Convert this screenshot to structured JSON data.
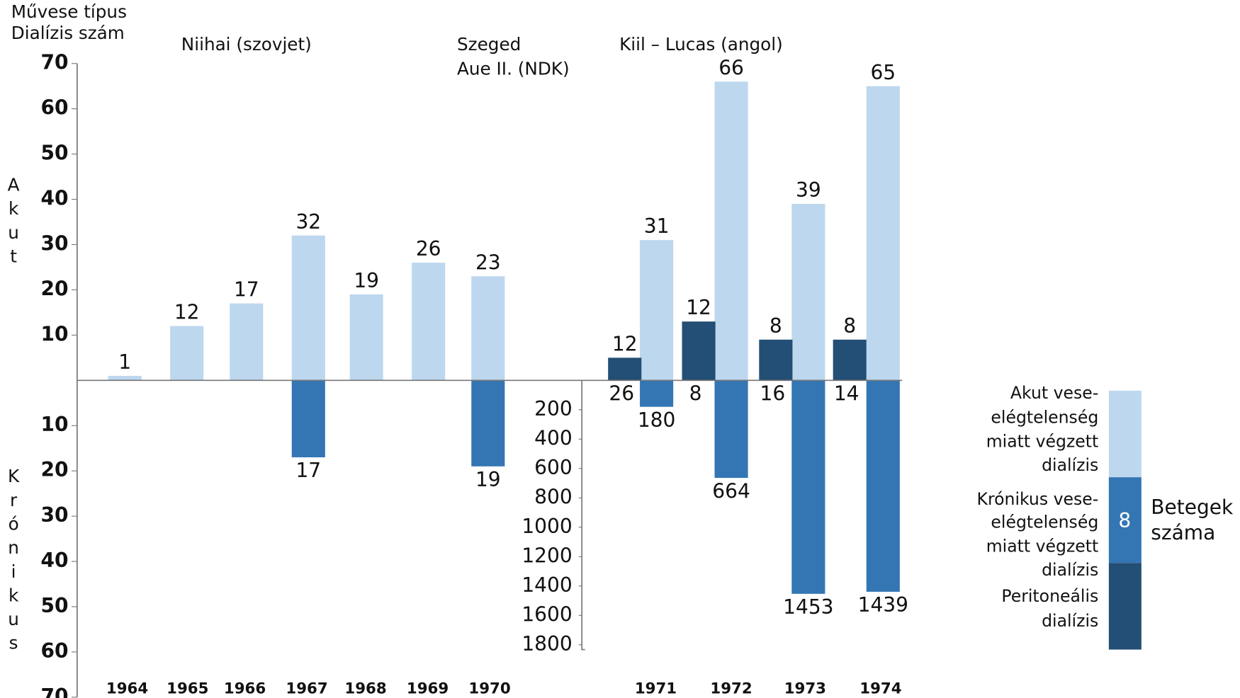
{
  "chart_data": {
    "type": "bar",
    "axis_title": [
      "Művese típus",
      "Dialízis szám"
    ],
    "y_label_acute": "Akut",
    "y_label_chronic": "Krónikus",
    "annotations": [
      [
        "Niihai (szovjet)"
      ],
      [
        "Szeged",
        "Aue II. (NDK)"
      ],
      [
        "Kiil – Lucas (angol)"
      ]
    ],
    "categories": [
      "1964",
      "1965",
      "1966",
      "1967",
      "1968",
      "1969",
      "1970",
      "1971",
      "1972",
      "1973",
      "1974"
    ],
    "ylim": [
      0,
      70
    ],
    "yticks": [
      10,
      20,
      30,
      40,
      50,
      60,
      70
    ],
    "ylim_chronic": [
      0,
      70
    ],
    "yticks_chronic": [
      10,
      20,
      30,
      40,
      50,
      60,
      70
    ],
    "y2lim": [
      0,
      1800
    ],
    "y2ticks": [
      200,
      400,
      600,
      800,
      1000,
      1200,
      1400,
      1600,
      1800
    ],
    "series": [
      {
        "name": [
          "Akut vese-",
          "elégtelenség",
          "miatt végzett",
          "dialízis"
        ],
        "color": "#bdd7ee",
        "values": [
          1,
          12,
          17,
          32,
          19,
          26,
          23,
          31,
          66,
          39,
          65
        ]
      },
      {
        "name": [
          "Krónikus vese-",
          "elégtelenség",
          "miatt végzett",
          "dialízis"
        ],
        "color": "#3476b3",
        "values": [
          null,
          null,
          null,
          17,
          null,
          null,
          19,
          180,
          664,
          1453,
          1439
        ],
        "axis": [
          "y",
          "y",
          "y",
          "y",
          "y",
          "y",
          "y",
          "y2",
          "y2",
          "y2",
          "y2"
        ]
      },
      {
        "name": [
          "Peritoneális",
          "dialízis"
        ],
        "color": "#234e75",
        "values": [
          null,
          null,
          null,
          null,
          null,
          null,
          null,
          5,
          13,
          9,
          9
        ],
        "labels": [
          null,
          null,
          null,
          null,
          null,
          null,
          null,
          12,
          12,
          8,
          8
        ]
      }
    ],
    "patients": [
      null,
      null,
      null,
      null,
      null,
      null,
      null,
      26,
      8,
      16,
      14
    ],
    "legend_sample": 8,
    "legend_title": [
      "Betegek",
      "száma"
    ]
  }
}
